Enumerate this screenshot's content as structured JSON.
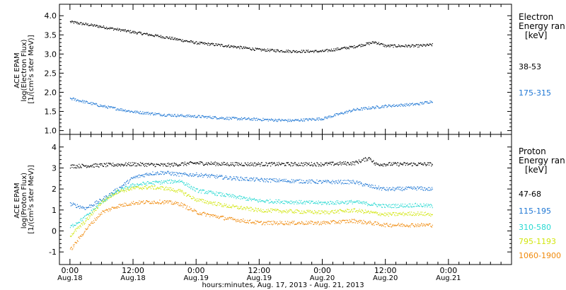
{
  "colors": {
    "black": "#000000",
    "blue": "#1f77d4",
    "cyan": "#28d9d2",
    "yellow": "#d2e60f",
    "orange": "#f08a0c"
  },
  "chart_data": [
    {
      "type": "scatter",
      "ylabel": [
        "ACE EPAM",
        "log(Electron Flux)",
        "[1/(cm²s ster MeV)]"
      ],
      "ylim": [
        0.9,
        4.3
      ],
      "yticks": [
        "1.0",
        "1.5",
        "2.0",
        "2.5",
        "3.0",
        "3.5",
        "4.0"
      ],
      "legend_title": [
        "Electron",
        "Energy ran",
        "[keV]"
      ],
      "legend_placement": "right",
      "series": [
        {
          "name": "38-53",
          "color": "#000000",
          "x_hours": [
            0,
            6,
            12,
            18,
            24,
            30,
            36,
            42,
            48,
            54,
            58,
            60,
            66,
            69
          ],
          "values": [
            3.85,
            3.72,
            3.58,
            3.45,
            3.3,
            3.22,
            3.12,
            3.08,
            3.08,
            3.2,
            3.32,
            3.22,
            3.22,
            3.25
          ]
        },
        {
          "name": "175-315",
          "color": "#1f77d4",
          "x_hours": [
            0,
            6,
            12,
            18,
            24,
            30,
            36,
            42,
            48,
            54,
            60,
            66,
            69
          ],
          "values": [
            1.85,
            1.65,
            1.5,
            1.42,
            1.38,
            1.33,
            1.3,
            1.27,
            1.32,
            1.55,
            1.65,
            1.7,
            1.78
          ]
        }
      ]
    },
    {
      "type": "scatter",
      "ylabel": [
        "ACE EPAM",
        "log(Proton Flux)",
        "[1/(cm²s ster MeV)]"
      ],
      "ylim": [
        -1.6,
        4.6
      ],
      "yticks": [
        "-1",
        "0",
        "1",
        "2",
        "3",
        "4"
      ],
      "legend_title": [
        "Proton",
        "Energy ran",
        "[keV]"
      ],
      "legend_placement": "right",
      "xlabel": "hours:minutes, Aug. 17, 2013 - Aug. 21, 2013",
      "xlim_hours": [
        -2,
        84
      ],
      "xticks": [
        {
          "h": 0,
          "time": "0:00",
          "date": "Aug.18"
        },
        {
          "h": 12,
          "time": "12:00",
          "date": "Aug.18"
        },
        {
          "h": 24,
          "time": "0:00",
          "date": "Aug.19"
        },
        {
          "h": 36,
          "time": "12:00",
          "date": "Aug.19"
        },
        {
          "h": 48,
          "time": "0:00",
          "date": "Aug.20"
        },
        {
          "h": 60,
          "time": "12:00",
          "date": "Aug.20"
        },
        {
          "h": 72,
          "time": "0:00",
          "date": "Aug.21"
        }
      ],
      "series": [
        {
          "name": "47-68",
          "color": "#000000",
          "x_hours": [
            0,
            6,
            12,
            18,
            24,
            30,
            36,
            42,
            48,
            54,
            57,
            58,
            60,
            66,
            69
          ],
          "values": [
            3.1,
            3.15,
            3.2,
            3.15,
            3.25,
            3.2,
            3.2,
            3.2,
            3.2,
            3.25,
            3.5,
            3.2,
            3.2,
            3.2,
            3.2
          ]
        },
        {
          "name": "115-195",
          "color": "#1f77d4",
          "x_hours": [
            0,
            3,
            6,
            9,
            12,
            15,
            18,
            21,
            24,
            30,
            36,
            42,
            48,
            54,
            57,
            60,
            66,
            69
          ],
          "values": [
            1.3,
            1.1,
            1.5,
            2.0,
            2.55,
            2.75,
            2.8,
            2.7,
            2.7,
            2.55,
            2.45,
            2.4,
            2.35,
            2.35,
            2.15,
            2.0,
            2.05,
            2.0
          ]
        },
        {
          "name": "310-580",
          "color": "#28d9d2",
          "x_hours": [
            0,
            3,
            6,
            9,
            12,
            15,
            18,
            21,
            24,
            30,
            36,
            42,
            48,
            54,
            60,
            66,
            69
          ],
          "values": [
            0.2,
            0.7,
            1.4,
            1.9,
            2.2,
            2.3,
            2.35,
            2.4,
            1.95,
            1.7,
            1.45,
            1.4,
            1.35,
            1.4,
            1.2,
            1.25,
            1.2
          ]
        },
        {
          "name": "795-1193",
          "color": "#d2e60f",
          "x_hours": [
            0,
            3,
            6,
            9,
            12,
            15,
            18,
            21,
            24,
            30,
            36,
            42,
            48,
            54,
            60,
            66,
            69
          ],
          "values": [
            -0.2,
            0.5,
            1.4,
            1.9,
            2.05,
            2.1,
            2.05,
            1.9,
            1.5,
            1.2,
            1.0,
            0.95,
            0.9,
            1.0,
            0.8,
            0.85,
            0.8
          ]
        },
        {
          "name": "1060-1900",
          "color": "#f08a0c",
          "x_hours": [
            0,
            3,
            6,
            9,
            12,
            15,
            18,
            21,
            24,
            30,
            36,
            42,
            48,
            54,
            60,
            66,
            69
          ],
          "values": [
            -0.9,
            0.1,
            0.9,
            1.2,
            1.35,
            1.4,
            1.4,
            1.3,
            0.9,
            0.6,
            0.4,
            0.4,
            0.4,
            0.5,
            0.3,
            0.3,
            0.3
          ]
        }
      ]
    }
  ]
}
